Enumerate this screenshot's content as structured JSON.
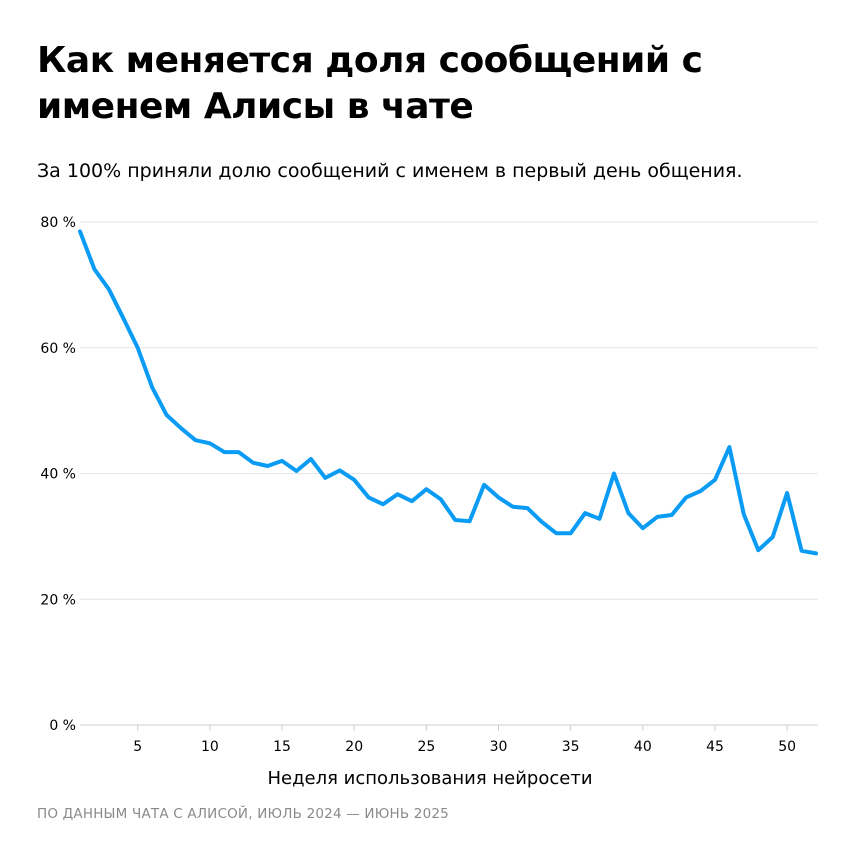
{
  "title": "Как меняется доля сообщений с именем Алисы в чате",
  "subtitle": "За 100% приняли долю сообщений с именем в первый день общения.",
  "source": "ПО ДАННЫМ ЧАТА С АЛИСОЙ, ИЮЛЬ 2024 — ИЮНЬ 2025",
  "chart_data": {
    "type": "line",
    "title": "Как меняется доля сообщений с именем Алисы в чате",
    "xlabel": "Неделя использования нейросети",
    "ylabel": "",
    "xlim": [
      1,
      52
    ],
    "ylim": [
      0,
      80
    ],
    "grid": true,
    "line_color": "#0a9bf5",
    "x_ticks": [
      "5",
      "10",
      "15",
      "20",
      "25",
      "30",
      "35",
      "40",
      "45",
      "50"
    ],
    "x_tick_values": [
      5,
      10,
      15,
      20,
      25,
      30,
      35,
      40,
      45,
      50
    ],
    "y_ticks": [
      "0 %",
      "20 %",
      "40 %",
      "60 %",
      "80 %"
    ],
    "y_tick_values": [
      0,
      20,
      40,
      60,
      80
    ],
    "x": [
      1,
      2,
      3,
      4,
      5,
      6,
      7,
      8,
      9,
      10,
      11,
      12,
      13,
      14,
      15,
      16,
      17,
      18,
      19,
      20,
      21,
      22,
      23,
      24,
      25,
      26,
      27,
      28,
      29,
      30,
      31,
      32,
      33,
      34,
      35,
      36,
      37,
      38,
      39,
      40,
      41,
      42,
      43,
      44,
      45,
      46,
      47,
      48,
      49,
      50,
      51,
      52
    ],
    "values": [
      78.5,
      72.5,
      69.3,
      64.7,
      60,
      53.7,
      49.3,
      47.2,
      45.3,
      44.8,
      43.4,
      43.4,
      41.7,
      41.2,
      42,
      40.4,
      42.3,
      39.3,
      40.5,
      39,
      36.2,
      35.1,
      36.7,
      35.6,
      37.5,
      35.9,
      32.6,
      32.4,
      38.2,
      36.2,
      34.7,
      34.5,
      32.3,
      30.5,
      30.5,
      33.7,
      32.8,
      40,
      33.7,
      31.3,
      33.1,
      33.4,
      36.2,
      37.2,
      39,
      44.2,
      33.5,
      27.8,
      29.9,
      36.9,
      27.7,
      27.3
    ]
  }
}
